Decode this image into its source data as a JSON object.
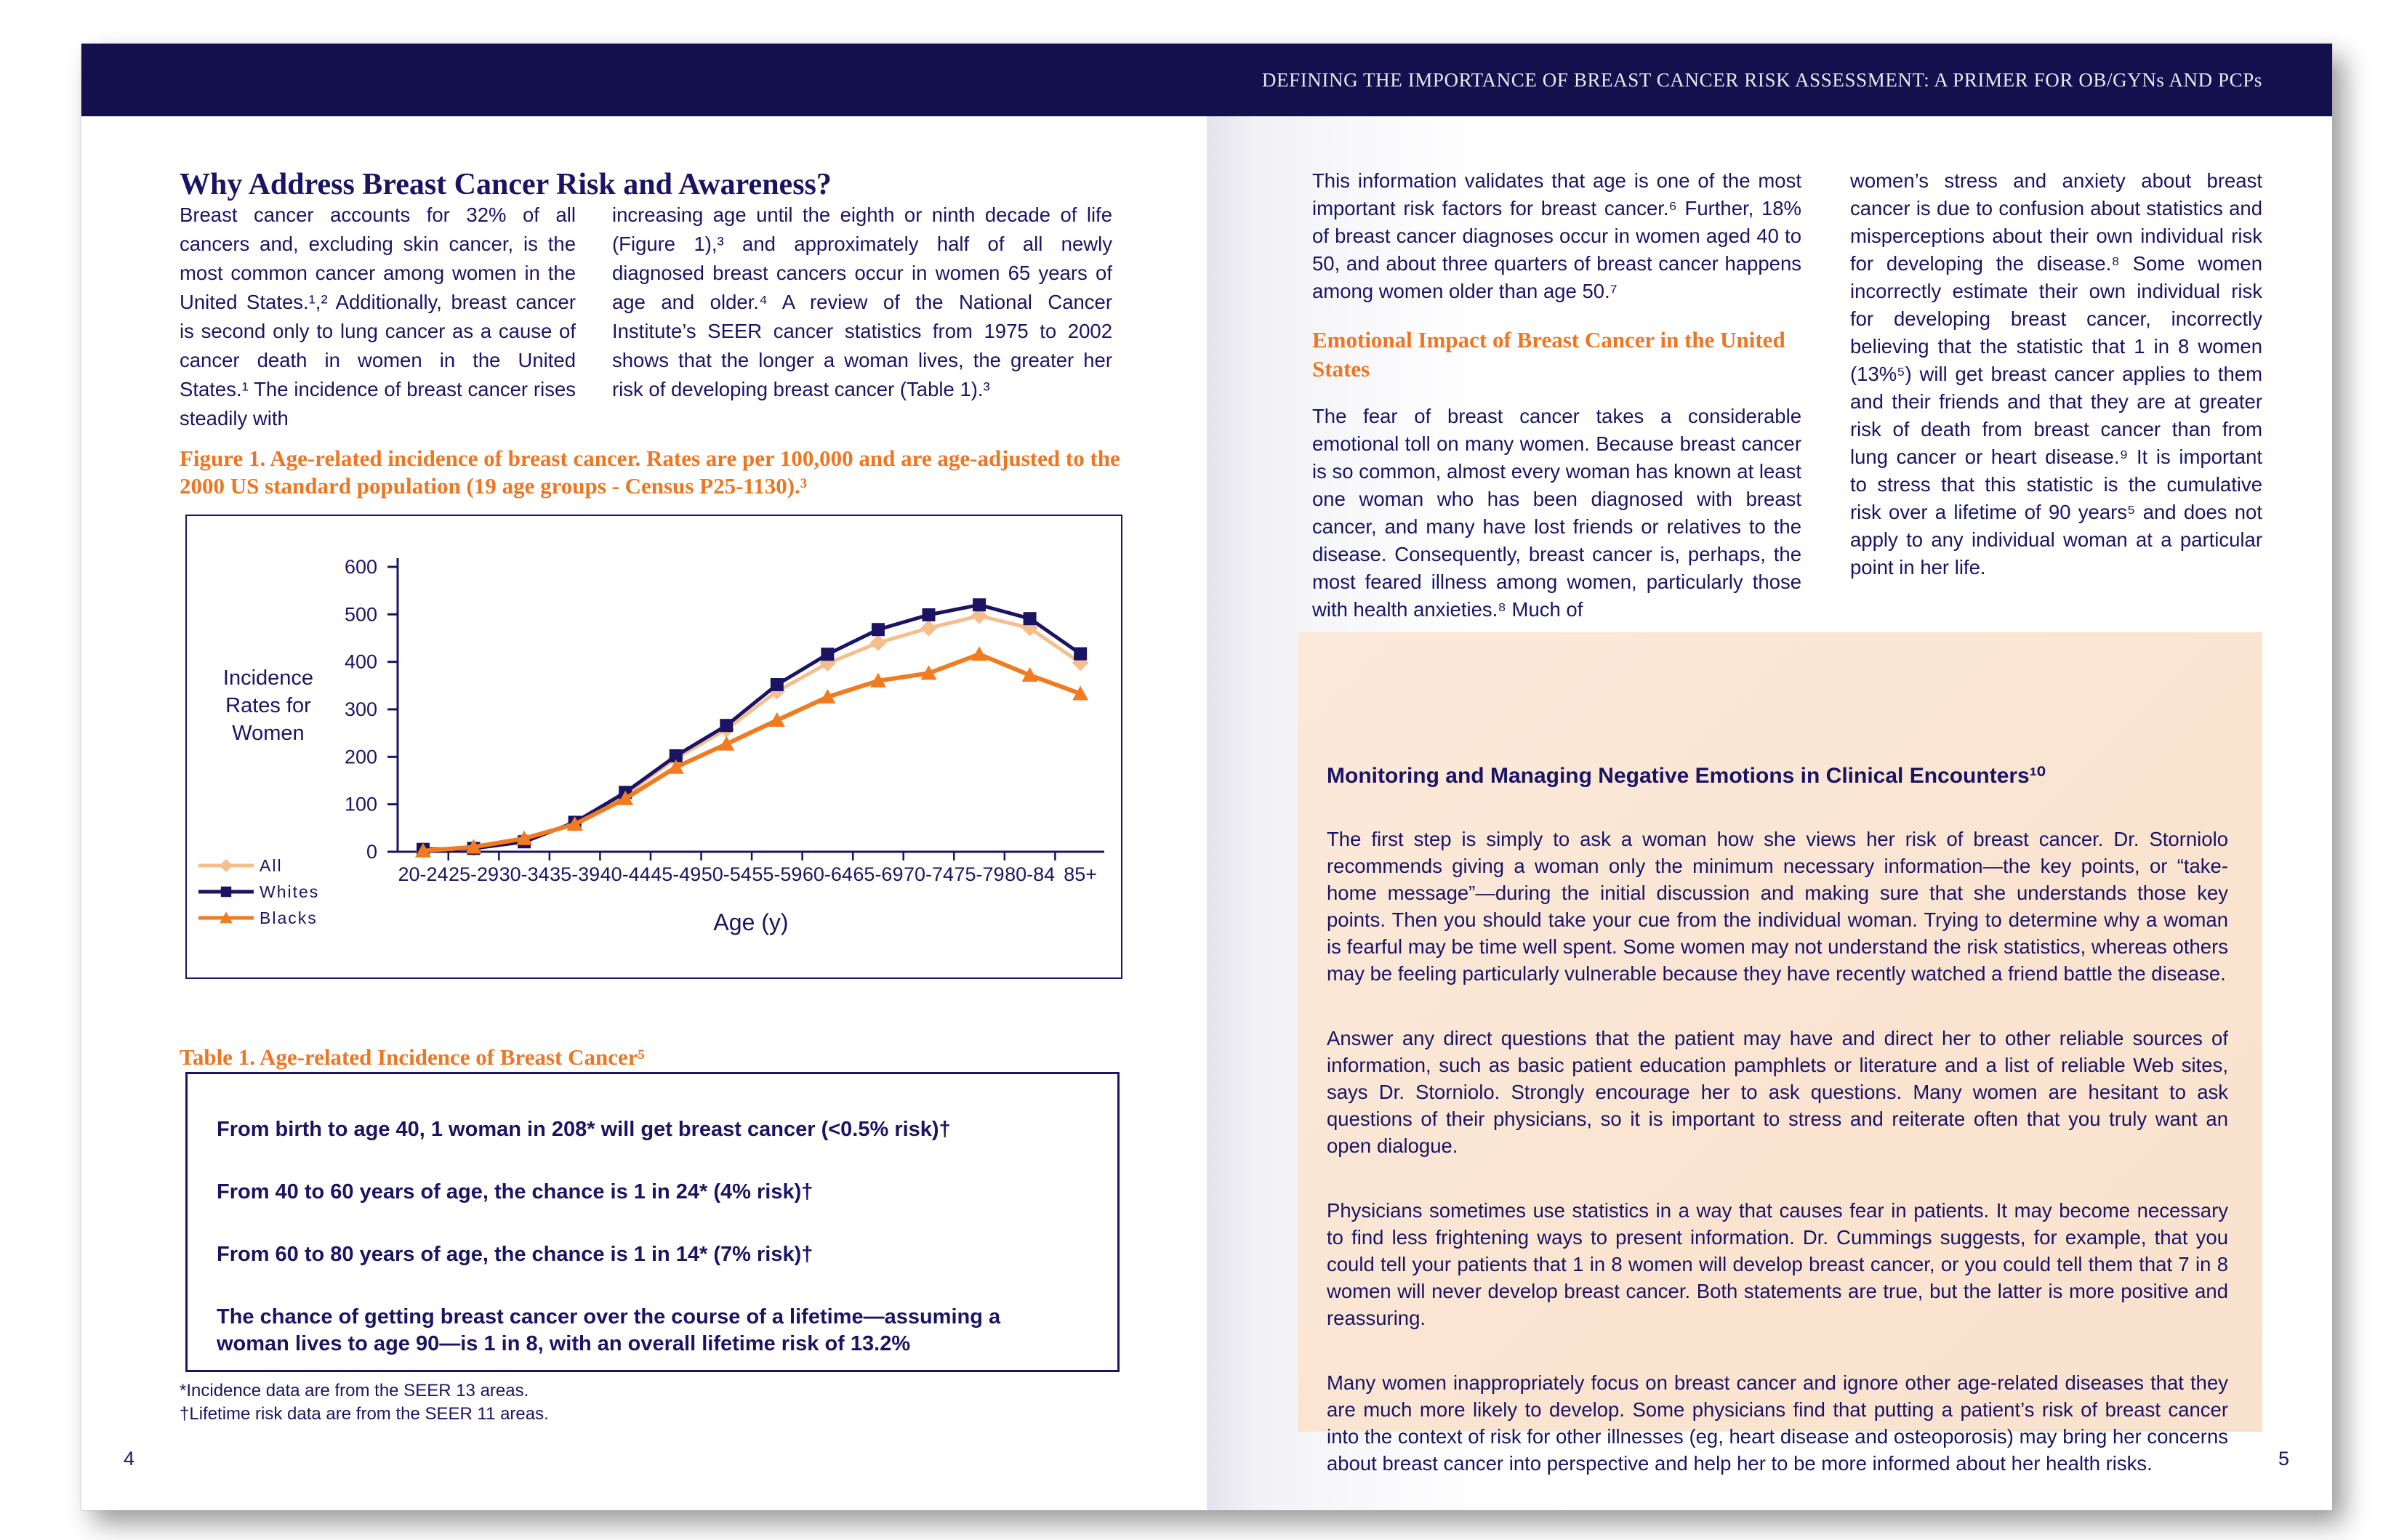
{
  "header": {
    "title": "DEFINING THE IMPORTANCE OF BREAST CANCER RISK ASSESSMENT: A PRIMER FOR OB/GYNs AND PCPs"
  },
  "left_page": {
    "heading": "Why Address Breast Cancer Risk and Awareness?",
    "col1_text": "Breast cancer accounts for 32% of all cancers and, excluding skin cancer, is the most common cancer among women in the United States.¹,² Additionally, breast cancer is second only to lung cancer as a cause of cancer death in women in the United States.¹ The incidence of breast cancer rises steadily with",
    "col2_text": "increasing age until the eighth or ninth decade of life (Figure 1),³ and approximately half of all newly diagnosed breast cancers occur in women 65 years of age and older.⁴ A review of the National Cancer Institute’s SEER cancer statistics from 1975 to 2002 shows that the longer a woman lives, the greater her risk of developing breast cancer (Table 1).³",
    "figure_caption": "Figure 1. Age-related incidence of breast cancer. Rates are per 100,000 and are age-adjusted to the 2000 US standard population (19 age groups - Census P25-1130).³",
    "table_caption": "Table 1. Age-related Incidence of Breast Cancer⁵",
    "table_rows": [
      "From birth to age 40, 1 woman in 208* will get breast cancer (<0.5% risk)†",
      "From 40 to 60 years of age, the chance is 1 in 24* (4% risk)†",
      "From 60 to 80 years of age, the chance is 1 in 14* (7% risk)†",
      "The chance of getting breast cancer over the course of a lifetime—assuming a woman lives to age 90—is 1 in 8, with an overall lifetime risk of 13.2%"
    ],
    "footnote1": "*Incidence data are from the SEER 13 areas.",
    "footnote2": "†Lifetime risk data are from the SEER 11 areas.",
    "page_number": "4"
  },
  "right_page": {
    "col1_para1": "This information validates that age is one of the most important risk factors for breast cancer.⁶ Further, 18% of breast cancer diagnoses occur in women aged 40 to 50, and about three quarters of breast cancer happens among women older than age 50.⁷",
    "emotional_heading": "Emotional Impact of Breast Cancer in the United States",
    "col1_para2": "The fear of breast cancer takes a considerable emotional toll on many women. Because breast cancer is so common, almost every woman has known at least one woman who has been diagnosed with breast cancer, and many have lost friends or relatives to the disease. Consequently, breast cancer is, perhaps, the most feared illness among women, particularly those with health anxieties.⁸ Much of",
    "col2_para": "women’s stress and anxiety about breast cancer is due to confusion about statistics and misperceptions about their own individual risk for developing the disease.⁸ Some women incorrectly estimate their own individual risk for developing breast cancer, incorrectly believing that the statistic that 1 in 8 women (13%⁵) will get breast cancer applies to them and their friends and that they are at greater risk of death from breast cancer than from lung cancer or heart disease.⁹ It is important to stress that this statistic is the cumulative risk over a lifetime of 90 years⁵ and does not apply to any individual woman at a particular point in her life.",
    "box": {
      "title": "Monitoring and Managing Negative Emotions in Clinical Encounters¹⁰",
      "paragraphs": [
        "The first step is simply to ask a woman how she views her risk of breast cancer. Dr. Storniolo recommends giving a woman only the minimum necessary information—the key points, or “take-home message”—during the initial discussion and making sure that she understands those key points. Then you should take your cue from the individual woman. Trying to determine why a woman is fearful may be time well spent. Some women may not understand the risk statistics, whereas others may be feeling particularly vulnerable because they have recently watched a friend battle the disease.",
        "Answer any direct questions that the patient may have and direct her to other reliable sources of information, such as basic patient education pamphlets or literature and a list of reliable Web sites, says Dr. Storniolo. Strongly encourage her to ask questions. Many women are hesitant to ask questions of their physicians, so it is important to stress and reiterate often that you truly want an open dialogue.",
        "Physicians sometimes use statistics in a way that causes fear in patients. It may become necessary to find less frightening ways to present information. Dr. Cummings suggests, for example, that you could tell your patients that 1 in 8 women will develop breast cancer, or you could tell them that 7 in 8 women will never develop breast cancer. Both statements are true, but the latter is more positive and reassuring.",
        "Many women inappropriately focus on breast cancer and ignore other age-related diseases that they are much more likely to develop. Some physicians find that putting a patient’s risk of breast cancer into the context of risk for other illnesses (eg, heart disease and osteoporosis) may bring her concerns about breast cancer into perspective and help her to be more informed about her health risks."
      ]
    },
    "page_number": "5"
  },
  "chart_data": {
    "type": "line",
    "title": "Age-related incidence of breast cancer (rates per 100,000, age-adjusted to 2000 US standard population)",
    "categories": [
      "20-24",
      "25-29",
      "30-34",
      "35-39",
      "40-44",
      "45-49",
      "50-54",
      "55-59",
      "60-64",
      "65-69",
      "70-74",
      "75-79",
      "80-84",
      "85+"
    ],
    "series": [
      {
        "name": "All",
        "color": "#F5BE8C",
        "marker": "diamond",
        "values": [
          3,
          8,
          25,
          60,
          120,
          197,
          258,
          338,
          397,
          440,
          471,
          497,
          471,
          398
        ]
      },
      {
        "name": "Whites",
        "color": "#1B1464",
        "marker": "square",
        "values": [
          5,
          7,
          21,
          62,
          125,
          202,
          266,
          352,
          416,
          468,
          499,
          520,
          491,
          417
        ]
      },
      {
        "name": "Blacks",
        "color": "#F07B21",
        "marker": "triangle",
        "values": [
          2,
          10,
          28,
          58,
          112,
          178,
          227,
          277,
          326,
          360,
          376,
          416,
          372,
          333
        ]
      }
    ],
    "ylabel_lines": [
      "Incidence",
      "Rates for",
      "Women"
    ],
    "xlabel": "Age (y)",
    "ylim": [
      0,
      600
    ],
    "ytick_step": 100,
    "grid": "off",
    "legend_position": "bottom-left",
    "axis_color": "#1B1464"
  }
}
